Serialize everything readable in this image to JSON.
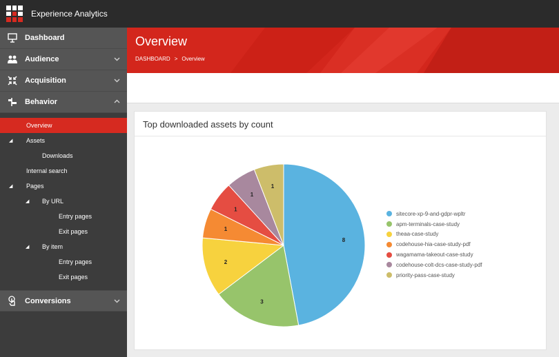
{
  "app": {
    "title": "Experience Analytics"
  },
  "sidebar": {
    "sections": [
      {
        "label": "Dashboard",
        "icon": "presentation-icon",
        "chevron": ""
      },
      {
        "label": "Audience",
        "icon": "people-icon",
        "chevron": "down"
      },
      {
        "label": "Acquisition",
        "icon": "arrows-inward-icon",
        "chevron": "down"
      },
      {
        "label": "Behavior",
        "icon": "signpost-icon",
        "chevron": "up"
      },
      {
        "label": "Conversions",
        "icon": "pointer-hand-icon",
        "chevron": "down"
      }
    ],
    "behavior_items": [
      {
        "label": "Overview",
        "active": true
      },
      {
        "label": "Assets"
      },
      {
        "label": "Downloads"
      },
      {
        "label": "Internal search"
      },
      {
        "label": "Pages"
      },
      {
        "label": "By URL"
      },
      {
        "label": "Entry pages"
      },
      {
        "label": "Exit pages"
      },
      {
        "label": "By item"
      },
      {
        "label": "Entry pages"
      },
      {
        "label": "Exit pages"
      }
    ]
  },
  "header": {
    "title": "Overview",
    "breadcrumb": [
      "DASHBOARD",
      ">",
      "Overview"
    ]
  },
  "card": {
    "title": "Top downloaded assets by count"
  },
  "colors": {
    "brand_red": "#d3261c",
    "active_red": "#d62a20",
    "sidebar_bg": "#3c3c3c"
  },
  "chart_data": {
    "type": "pie",
    "title": "Top downloaded assets by count",
    "legend_position": "right",
    "series": [
      {
        "name": "sitecore-xp-9-and-gdpr-wpltr",
        "value": 8,
        "color": "#5ab3e0"
      },
      {
        "name": "apm-terminals-case-study",
        "value": 3,
        "color": "#97c46b"
      },
      {
        "name": "theaa-case-study",
        "value": 2,
        "color": "#f7d23e"
      },
      {
        "name": "codehouse-hia-case-study-pdf",
        "value": 1,
        "color": "#f58a33"
      },
      {
        "name": "wagamama-takeout-case-study",
        "value": 1,
        "color": "#e54d42"
      },
      {
        "name": "codehouse-colt-dcs-case-study-pdf",
        "value": 1,
        "color": "#a8889e"
      },
      {
        "name": "priority-pass-case-study",
        "value": 1,
        "color": "#cdbd6a"
      }
    ]
  }
}
